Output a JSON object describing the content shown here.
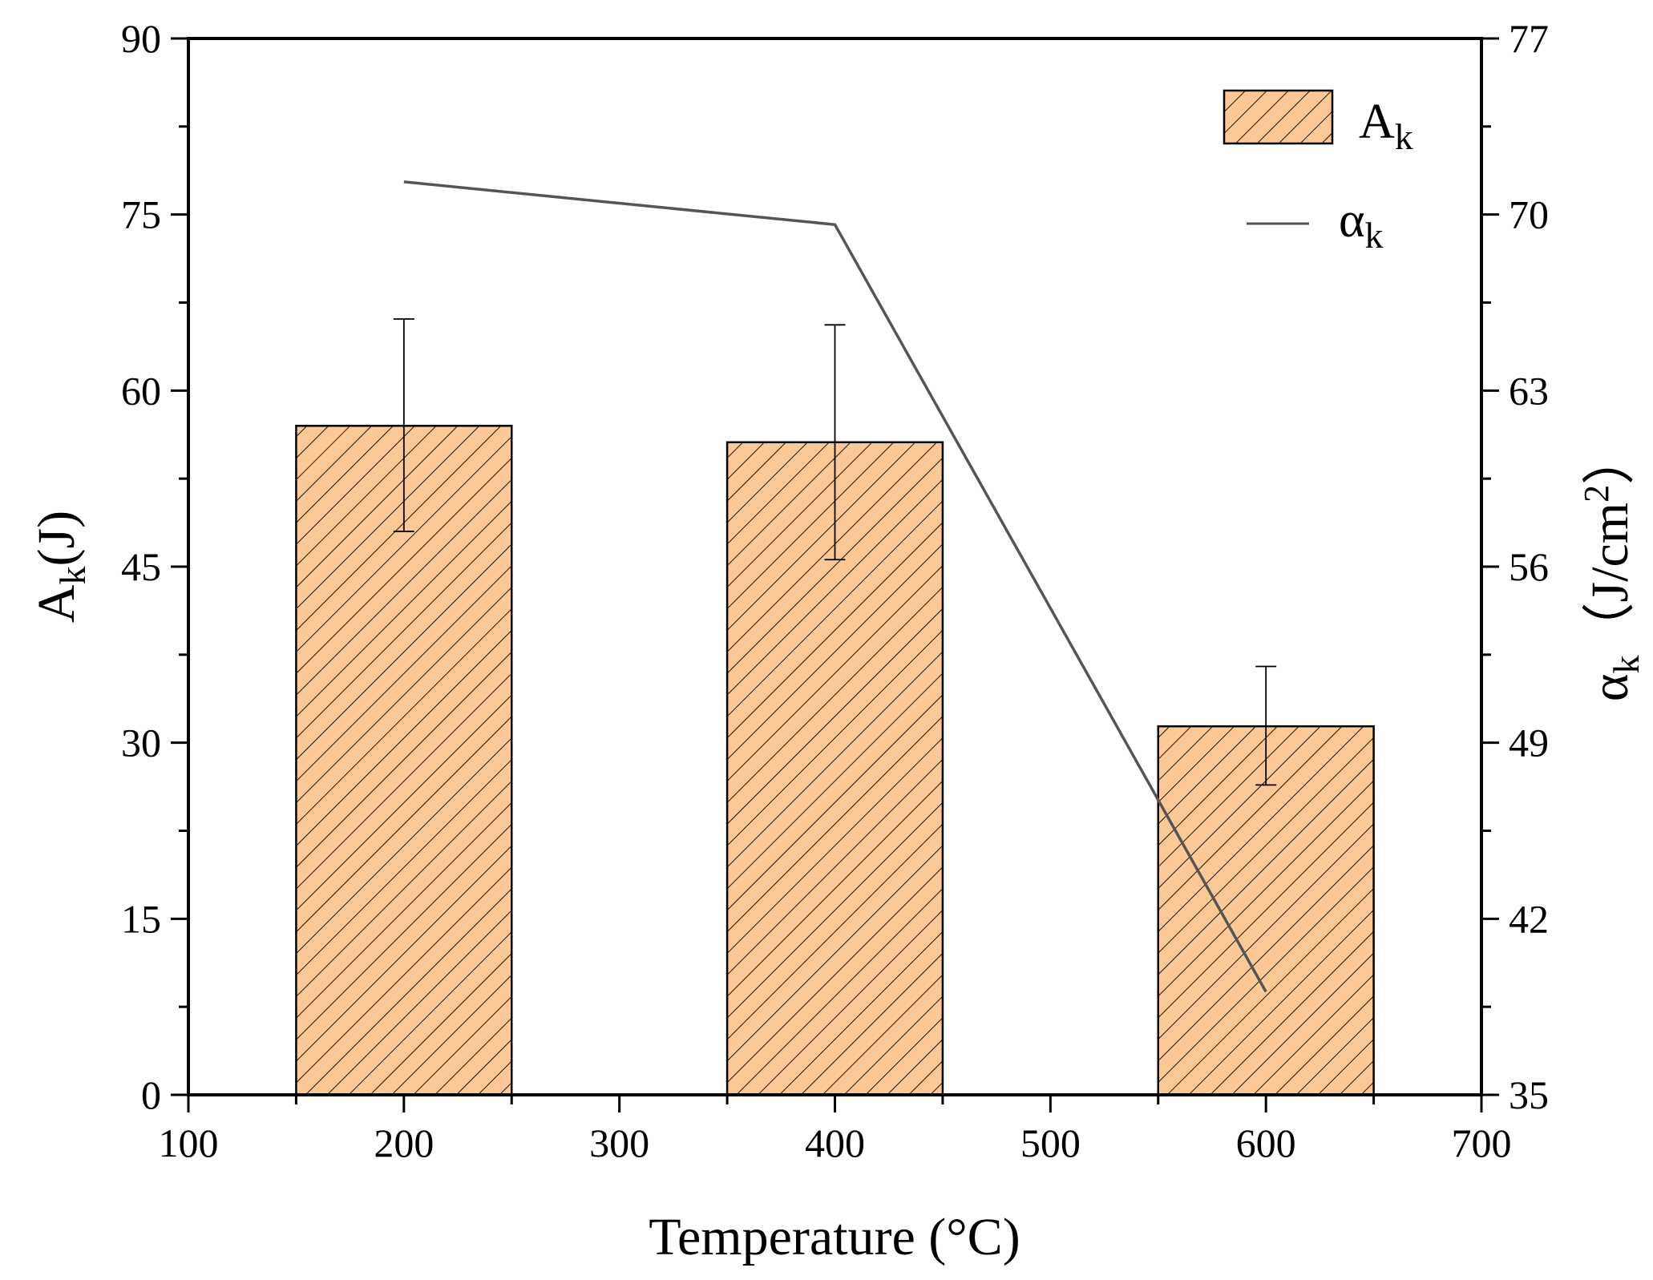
{
  "chart_data": {
    "type": "bar+line",
    "title": "",
    "xlabel": "Temperature (°C)",
    "xlim": [
      100,
      700
    ],
    "x_ticks": [
      100,
      200,
      300,
      400,
      500,
      600,
      700
    ],
    "left_axis": {
      "label_main": "A",
      "label_sub": "k",
      "label_tail": "(J)",
      "ylim": [
        0,
        90
      ],
      "ticks": [
        0,
        15,
        30,
        45,
        60,
        75,
        90
      ]
    },
    "right_axis": {
      "label_main": "α",
      "label_sub": "k",
      "label_tail": "（J/cm",
      "label_sup": "2",
      "label_close": "）",
      "ylim": [
        35,
        77
      ],
      "ticks": [
        35,
        42,
        49,
        56,
        63,
        70,
        77
      ]
    },
    "bar_width": 100,
    "bars": {
      "name_main": "A",
      "name_sub": "k",
      "x": [
        200,
        400,
        600
      ],
      "values": [
        57,
        55.6,
        31.4
      ],
      "error_low": [
        48,
        45.6,
        26.4
      ],
      "error_high": [
        66.1,
        65.6,
        36.5
      ],
      "fill_color": "#fcc895",
      "hatch_color": "#000000"
    },
    "line": {
      "name_main": "α",
      "name_sub": "k",
      "x": [
        200,
        400,
        600
      ],
      "values": [
        71.3,
        69.6,
        39.1
      ],
      "color": "#555555"
    },
    "legend_position": "top-right"
  }
}
